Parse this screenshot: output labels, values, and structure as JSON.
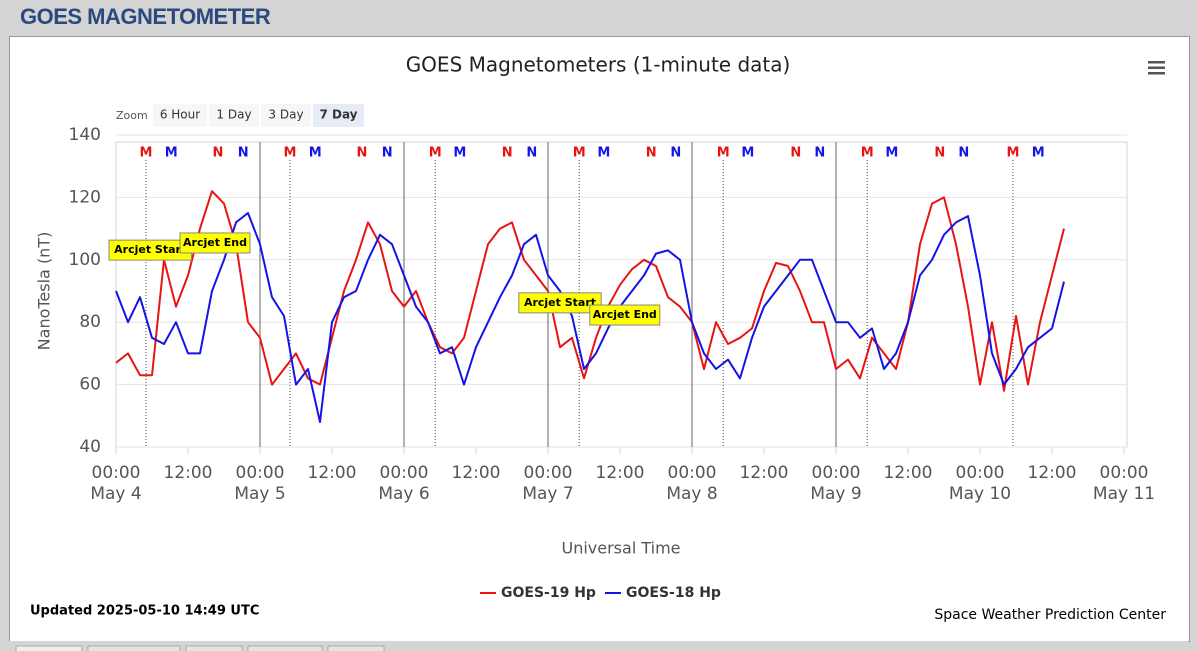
{
  "header": {
    "title": "GOES MAGNETOMETER"
  },
  "chart_data": {
    "type": "line",
    "title": "GOES Magnetometers (1-minute data)",
    "zoom": {
      "label": "Zoom",
      "buttons": [
        "6 Hour",
        "1 Day",
        "3 Day",
        "7 Day"
      ],
      "selected": 3
    },
    "ylabel": "NanoTesla (nT)",
    "xlabel": "Universal Time",
    "ylim": [
      40,
      140
    ],
    "yticks": [
      40,
      60,
      80,
      100,
      120,
      140
    ],
    "xlim": [
      0,
      168
    ],
    "xticks": [
      {
        "value": 0,
        "label": "00:00 May 4"
      },
      {
        "value": 12,
        "label": "12:00"
      },
      {
        "value": 24,
        "label": "00:00 May 5"
      },
      {
        "value": 36,
        "label": "12:00"
      },
      {
        "value": 48,
        "label": "00:00 May 6"
      },
      {
        "value": 60,
        "label": "12:00"
      },
      {
        "value": 72,
        "label": "00:00 May 7"
      },
      {
        "value": 84,
        "label": "12:00"
      },
      {
        "value": 96,
        "label": "00:00 May 8"
      },
      {
        "value": 108,
        "label": "12:00"
      },
      {
        "value": 120,
        "label": "00:00 May 9"
      },
      {
        "value": 132,
        "label": "12:00"
      },
      {
        "value": 144,
        "label": "00:00 May 10"
      },
      {
        "value": 156,
        "label": "12:00"
      },
      {
        "value": 168,
        "label": "00:00 May 11"
      }
    ],
    "grid": true,
    "x": [
      0,
      2,
      4,
      6,
      8,
      10,
      12,
      14,
      16,
      18,
      20,
      22,
      24,
      26,
      28,
      30,
      32,
      34,
      36,
      38,
      40,
      42,
      44,
      46,
      48,
      50,
      52,
      54,
      56,
      58,
      60,
      62,
      64,
      66,
      68,
      70,
      72,
      74,
      76,
      78,
      80,
      82,
      84,
      86,
      88,
      90,
      92,
      94,
      96,
      98,
      100,
      102,
      104,
      106,
      108,
      110,
      112,
      114,
      116,
      118,
      120,
      122,
      124,
      126,
      128,
      130,
      132,
      134,
      136,
      138,
      140,
      142,
      144,
      146,
      148,
      150,
      152,
      154,
      156,
      158
    ],
    "series": [
      {
        "name": "GOES-19 Hp",
        "color": "#e81414",
        "values": [
          67,
          70,
          63,
          63,
          100,
          85,
          95,
          110,
          122,
          118,
          105,
          80,
          75,
          60,
          65,
          70,
          62,
          60,
          75,
          90,
          100,
          112,
          105,
          90,
          85,
          90,
          80,
          72,
          70,
          75,
          90,
          105,
          110,
          112,
          100,
          95,
          90,
          72,
          75,
          62,
          75,
          85,
          92,
          97,
          100,
          98,
          88,
          85,
          80,
          65,
          80,
          73,
          75,
          78,
          90,
          99,
          98,
          90,
          80,
          80,
          65,
          68,
          62,
          75,
          70,
          65,
          80,
          105,
          118,
          120,
          105,
          85,
          60,
          80,
          58,
          82,
          60,
          80,
          95,
          110
        ]
      },
      {
        "name": "GOES-18 Hp",
        "color": "#1414e8",
        "values": [
          90,
          80,
          88,
          75,
          73,
          80,
          70,
          70,
          90,
          100,
          112,
          115,
          105,
          88,
          82,
          60,
          65,
          48,
          80,
          88,
          90,
          100,
          108,
          105,
          95,
          85,
          80,
          70,
          72,
          60,
          72,
          80,
          88,
          95,
          105,
          108,
          95,
          90,
          82,
          65,
          70,
          78,
          85,
          90,
          95,
          102,
          103,
          100,
          80,
          70,
          65,
          68,
          62,
          75,
          85,
          90,
          95,
          100,
          100,
          90,
          80,
          80,
          75,
          78,
          65,
          70,
          80,
          95,
          100,
          108,
          112,
          114,
          95,
          70,
          60,
          65,
          72,
          75,
          78,
          93
        ]
      }
    ],
    "legend": "bottom",
    "markers": [
      {
        "label": "M",
        "x": 5,
        "color": "#e81414",
        "dotted": true
      },
      {
        "label": "M",
        "x": 9.2,
        "color": "#1414e8"
      },
      {
        "label": "N",
        "x": 17,
        "color": "#e81414"
      },
      {
        "label": "N",
        "x": 21.2,
        "color": "#1414e8"
      },
      {
        "label": "M",
        "x": 29,
        "color": "#e81414",
        "dotted": true
      },
      {
        "label": "M",
        "x": 33.2,
        "color": "#1414e8"
      },
      {
        "label": "N",
        "x": 41,
        "color": "#e81414"
      },
      {
        "label": "N",
        "x": 45.2,
        "color": "#1414e8"
      },
      {
        "label": "M",
        "x": 53.2,
        "color": "#e81414",
        "dotted": true
      },
      {
        "label": "M",
        "x": 57.3,
        "color": "#1414e8"
      },
      {
        "label": "N",
        "x": 65.2,
        "color": "#e81414"
      },
      {
        "label": "N",
        "x": 69.3,
        "color": "#1414e8"
      },
      {
        "label": "M",
        "x": 77.2,
        "color": "#e81414",
        "dotted": true
      },
      {
        "label": "M",
        "x": 81.3,
        "color": "#1414e8"
      },
      {
        "label": "N",
        "x": 89.2,
        "color": "#e81414"
      },
      {
        "label": "N",
        "x": 93.3,
        "color": "#1414e8"
      },
      {
        "label": "M",
        "x": 101.2,
        "color": "#e81414",
        "dotted": true
      },
      {
        "label": "M",
        "x": 105.3,
        "color": "#1414e8"
      },
      {
        "label": "N",
        "x": 113.3,
        "color": "#e81414"
      },
      {
        "label": "N",
        "x": 117.3,
        "color": "#1414e8"
      },
      {
        "label": "M",
        "x": 125.2,
        "color": "#e81414",
        "dotted": true
      },
      {
        "label": "M",
        "x": 129.3,
        "color": "#1414e8"
      },
      {
        "label": "N",
        "x": 137.3,
        "color": "#e81414"
      },
      {
        "label": "N",
        "x": 141.3,
        "color": "#1414e8"
      },
      {
        "label": "M",
        "x": 149.5,
        "color": "#e81414",
        "dotted": true
      },
      {
        "label": "M",
        "x": 153.7,
        "color": "#1414e8"
      }
    ],
    "annotations": [
      {
        "text": "Arcjet Start",
        "x": 5.7,
        "y": 103.1
      },
      {
        "text": "Arcjet End",
        "x": 16.5,
        "y": 105.4
      },
      {
        "text": "Arcjet Start",
        "x": 74,
        "y": 86.2
      },
      {
        "text": "Arcjet End",
        "x": 84.8,
        "y": 82.3
      }
    ],
    "updated": "Updated 2025-05-10 14:49 UTC",
    "credit": "Space Weather Prediction Center"
  }
}
